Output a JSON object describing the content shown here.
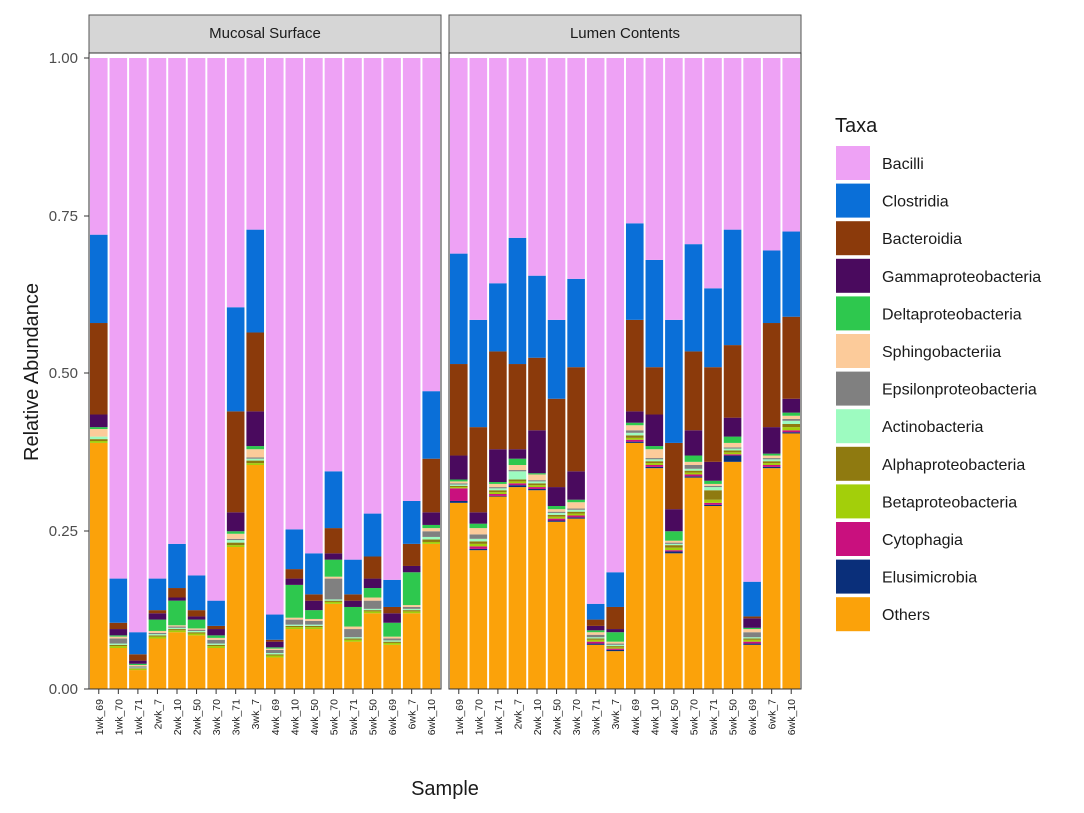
{
  "chart_data": {
    "type": "bar",
    "stacked": true,
    "xlabel": "Sample",
    "ylabel": "Relative Abundance",
    "ylim": [
      0,
      1
    ],
    "yticks": [
      "0.00",
      "0.25",
      "0.50",
      "0.75",
      "1.00"
    ],
    "legend_title": "Taxa",
    "legend_position": "right",
    "stack_order_bottom_to_top": [
      "Others",
      "Elusimicrobia",
      "Cytophagia",
      "Betaproteobacteria",
      "Alphaproteobacteria",
      "Actinobacteria",
      "Epsilonproteobacteria",
      "Sphingobacteriia",
      "Deltaproteobacteria",
      "Gammaproteobacteria",
      "Bacteroidia",
      "Clostridia",
      "Bacilli"
    ],
    "taxa": [
      {
        "name": "Bacilli",
        "color": "#EEA2F5"
      },
      {
        "name": "Clostridia",
        "color": "#0A6FD8"
      },
      {
        "name": "Bacteroidia",
        "color": "#8B3A0B"
      },
      {
        "name": "Gammaproteobacteria",
        "color": "#4A0A5E"
      },
      {
        "name": "Deltaproteobacteria",
        "color": "#2EC84E"
      },
      {
        "name": "Sphingobacteriia",
        "color": "#FCCB9A"
      },
      {
        "name": "Epsilonproteobacteria",
        "color": "#808080"
      },
      {
        "name": "Actinobacteria",
        "color": "#9DFBC0"
      },
      {
        "name": "Alphaproteobacteria",
        "color": "#8F7A10"
      },
      {
        "name": "Betaproteobacteria",
        "color": "#A3CF0A"
      },
      {
        "name": "Cytophagia",
        "color": "#C9107E"
      },
      {
        "name": "Elusimicrobia",
        "color": "#0A2F7A"
      },
      {
        "name": "Others",
        "color": "#FBA20A"
      }
    ],
    "facets": [
      {
        "title": "Mucosal Surface",
        "categories": [
          "1wk_69",
          "1wk_70",
          "1wk_71",
          "2wk_7",
          "2wk_10",
          "2wk_50",
          "3wk_70",
          "3wk_71",
          "3wk_7",
          "4wk_69",
          "4wk_10",
          "4wk_50",
          "5wk_70",
          "5wk_71",
          "5wk_50",
          "6wk_69",
          "6wk_7",
          "6wk_10"
        ],
        "cumulative_tops": {
          "Others": [
            0.39,
            0.065,
            0.03,
            0.08,
            0.09,
            0.085,
            0.065,
            0.225,
            0.355,
            0.05,
            0.095,
            0.095,
            0.135,
            0.075,
            0.12,
            0.07,
            0.12,
            0.23
          ],
          "Elusimicrobia": [
            0.39,
            0.065,
            0.03,
            0.08,
            0.09,
            0.085,
            0.065,
            0.225,
            0.355,
            0.05,
            0.095,
            0.095,
            0.135,
            0.075,
            0.12,
            0.07,
            0.12,
            0.23
          ],
          "Cytophagia": [
            0.39,
            0.065,
            0.03,
            0.08,
            0.09,
            0.085,
            0.065,
            0.225,
            0.355,
            0.05,
            0.095,
            0.095,
            0.135,
            0.075,
            0.12,
            0.07,
            0.12,
            0.23
          ],
          "Betaproteobacteria": [
            0.393,
            0.068,
            0.032,
            0.083,
            0.093,
            0.088,
            0.068,
            0.228,
            0.358,
            0.053,
            0.098,
            0.098,
            0.138,
            0.078,
            0.123,
            0.073,
            0.123,
            0.233
          ],
          "Alphaproteobacteria": [
            0.396,
            0.07,
            0.033,
            0.085,
            0.095,
            0.09,
            0.07,
            0.232,
            0.362,
            0.055,
            0.1,
            0.1,
            0.14,
            0.08,
            0.125,
            0.075,
            0.125,
            0.237
          ],
          "Actinobacteria": [
            0.4,
            0.072,
            0.034,
            0.087,
            0.097,
            0.092,
            0.072,
            0.236,
            0.365,
            0.057,
            0.102,
            0.102,
            0.142,
            0.082,
            0.127,
            0.077,
            0.127,
            0.241
          ],
          "Epsilonproteobacteria": [
            0.4,
            0.08,
            0.036,
            0.089,
            0.099,
            0.094,
            0.078,
            0.238,
            0.367,
            0.062,
            0.11,
            0.108,
            0.175,
            0.095,
            0.14,
            0.08,
            0.13,
            0.25
          ],
          "Sphingobacteriia": [
            0.412,
            0.083,
            0.038,
            0.092,
            0.101,
            0.096,
            0.081,
            0.246,
            0.38,
            0.064,
            0.113,
            0.111,
            0.178,
            0.099,
            0.145,
            0.083,
            0.133,
            0.255
          ],
          "Deltaproteobacteria": [
            0.415,
            0.085,
            0.04,
            0.11,
            0.14,
            0.11,
            0.085,
            0.25,
            0.385,
            0.066,
            0.165,
            0.125,
            0.205,
            0.13,
            0.16,
            0.105,
            0.185,
            0.26
          ],
          "Gammaproteobacteria": [
            0.435,
            0.095,
            0.045,
            0.12,
            0.145,
            0.115,
            0.095,
            0.28,
            0.44,
            0.075,
            0.175,
            0.14,
            0.215,
            0.14,
            0.175,
            0.12,
            0.195,
            0.28
          ],
          "Bacteroidia": [
            0.58,
            0.105,
            0.055,
            0.125,
            0.16,
            0.125,
            0.1,
            0.44,
            0.565,
            0.078,
            0.19,
            0.15,
            0.255,
            0.15,
            0.21,
            0.13,
            0.23,
            0.365
          ],
          "Clostridia": [
            0.72,
            0.175,
            0.09,
            0.175,
            0.23,
            0.18,
            0.14,
            0.605,
            0.728,
            0.118,
            0.253,
            0.215,
            0.345,
            0.205,
            0.278,
            0.173,
            0.298,
            0.472
          ],
          "Bacilli": [
            1,
            1,
            1,
            1,
            1,
            1,
            1,
            1,
            1,
            1,
            1,
            1,
            1,
            1,
            1,
            1,
            1,
            1
          ]
        }
      },
      {
        "title": "Lumen Contents",
        "categories": [
          "1wk_69",
          "1wk_70",
          "1wk_71",
          "2wk_7",
          "2wk_10",
          "2wk_50",
          "3wk_70",
          "3wk_71",
          "3wk_7",
          "4wk_69",
          "4wk_10",
          "4wk_50",
          "5wk_70",
          "5wk_71",
          "5wk_50",
          "6wk_69",
          "6wk_7",
          "6wk_10"
        ],
        "cumulative_tops": {
          "Others": [
            0.295,
            0.22,
            0.305,
            0.32,
            0.315,
            0.265,
            0.27,
            0.07,
            0.06,
            0.39,
            0.35,
            0.215,
            0.335,
            0.29,
            0.36,
            0.07,
            0.35,
            0.405
          ],
          "Elusimicrobia": [
            0.298,
            0.222,
            0.306,
            0.323,
            0.317,
            0.267,
            0.272,
            0.072,
            0.062,
            0.392,
            0.352,
            0.218,
            0.337,
            0.292,
            0.37,
            0.072,
            0.352,
            0.407
          ],
          "Cytophagia": [
            0.318,
            0.226,
            0.309,
            0.326,
            0.32,
            0.27,
            0.275,
            0.075,
            0.064,
            0.395,
            0.355,
            0.22,
            0.34,
            0.295,
            0.372,
            0.075,
            0.355,
            0.41
          ],
          "Betaproteobacteria": [
            0.32,
            0.23,
            0.312,
            0.329,
            0.323,
            0.273,
            0.278,
            0.078,
            0.066,
            0.398,
            0.358,
            0.224,
            0.343,
            0.3,
            0.375,
            0.078,
            0.358,
            0.415
          ],
          "Alphaproteobacteria": [
            0.322,
            0.234,
            0.315,
            0.332,
            0.326,
            0.276,
            0.281,
            0.08,
            0.068,
            0.402,
            0.361,
            0.228,
            0.346,
            0.315,
            0.378,
            0.08,
            0.361,
            0.42
          ],
          "Actinobacteria": [
            0.324,
            0.238,
            0.318,
            0.345,
            0.329,
            0.279,
            0.284,
            0.082,
            0.07,
            0.406,
            0.364,
            0.23,
            0.349,
            0.32,
            0.381,
            0.082,
            0.364,
            0.425
          ],
          "Epsilonproteobacteria": [
            0.326,
            0.245,
            0.32,
            0.347,
            0.331,
            0.281,
            0.286,
            0.086,
            0.072,
            0.41,
            0.366,
            0.232,
            0.355,
            0.322,
            0.383,
            0.09,
            0.366,
            0.428
          ],
          "Sphingobacteriia": [
            0.329,
            0.255,
            0.325,
            0.355,
            0.34,
            0.285,
            0.296,
            0.09,
            0.075,
            0.418,
            0.38,
            0.235,
            0.36,
            0.325,
            0.39,
            0.095,
            0.37,
            0.433
          ],
          "Deltaproteobacteria": [
            0.332,
            0.262,
            0.328,
            0.365,
            0.342,
            0.29,
            0.3,
            0.093,
            0.09,
            0.422,
            0.385,
            0.25,
            0.37,
            0.33,
            0.4,
            0.097,
            0.373,
            0.438
          ],
          "Gammaproteobacteria": [
            0.37,
            0.28,
            0.38,
            0.38,
            0.41,
            0.32,
            0.345,
            0.1,
            0.095,
            0.44,
            0.435,
            0.285,
            0.41,
            0.36,
            0.43,
            0.112,
            0.415,
            0.46
          ],
          "Bacteroidia": [
            0.515,
            0.415,
            0.535,
            0.515,
            0.525,
            0.46,
            0.51,
            0.11,
            0.13,
            0.585,
            0.51,
            0.39,
            0.535,
            0.51,
            0.545,
            0.115,
            0.58,
            0.59
          ],
          "Clostridia": [
            0.69,
            0.585,
            0.643,
            0.715,
            0.655,
            0.585,
            0.65,
            0.135,
            0.185,
            0.738,
            0.68,
            0.585,
            0.705,
            0.635,
            0.728,
            0.17,
            0.695,
            0.725
          ],
          "Bacilli": [
            1,
            1,
            1,
            1,
            1,
            1,
            1,
            1,
            1,
            1,
            1,
            1,
            1,
            1,
            1,
            1,
            1,
            1
          ]
        }
      }
    ]
  }
}
